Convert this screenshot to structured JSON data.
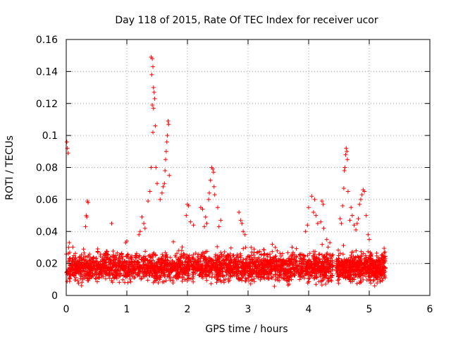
{
  "chart_data": {
    "type": "scatter",
    "title": "Day 118 of 2015, Rate Of TEC Index for receiver ucor",
    "xlabel": "GPS time / hours",
    "ylabel": "ROTI / TECUs",
    "xlim": [
      0,
      6
    ],
    "ylim": [
      0,
      0.16
    ],
    "xticks": [
      0,
      1,
      2,
      3,
      4,
      5,
      6
    ],
    "yticks": [
      0,
      0.02,
      0.04,
      0.06,
      0.08,
      0.1,
      0.12,
      0.14,
      0.16
    ],
    "xtick_labels": [
      "0",
      "1",
      "2",
      "3",
      "4",
      "5",
      "6"
    ],
    "ytick_labels": [
      "0",
      "0.02",
      "0.04",
      "0.06",
      "0.08",
      "0.1",
      "0.12",
      "0.14",
      "0.16"
    ],
    "grid": true,
    "marker": "plus",
    "series": [
      {
        "name": "ROTI",
        "color": "#ff0000",
        "baseline": {
          "x_range": [
            0.0,
            4.4
          ],
          "x_range_2": [
            4.45,
            5.27
          ],
          "y_range": [
            0.005,
            0.03
          ]
        },
        "points": [
          [
            0.01,
            0.096
          ],
          [
            0.02,
            0.092
          ],
          [
            0.03,
            0.089
          ],
          [
            0.05,
            0.033
          ],
          [
            0.04,
            0.03
          ],
          [
            0.35,
            0.059
          ],
          [
            0.36,
            0.058
          ],
          [
            0.33,
            0.05
          ],
          [
            0.34,
            0.049
          ],
          [
            0.32,
            0.043
          ],
          [
            0.75,
            0.045
          ],
          [
            0.98,
            0.033
          ],
          [
            1.0,
            0.034
          ],
          [
            1.4,
            0.149
          ],
          [
            1.42,
            0.148
          ],
          [
            1.43,
            0.143
          ],
          [
            1.41,
            0.138
          ],
          [
            1.44,
            0.13
          ],
          [
            1.45,
            0.127
          ],
          [
            1.46,
            0.123
          ],
          [
            1.42,
            0.119
          ],
          [
            1.44,
            0.117
          ],
          [
            1.47,
            0.106
          ],
          [
            1.43,
            0.102
          ],
          [
            1.4,
            0.08
          ],
          [
            1.48,
            0.08
          ],
          [
            1.5,
            0.07
          ],
          [
            1.38,
            0.065
          ],
          [
            1.35,
            0.059
          ],
          [
            1.68,
            0.109
          ],
          [
            1.69,
            0.107
          ],
          [
            1.67,
            0.1
          ],
          [
            1.66,
            0.096
          ],
          [
            1.65,
            0.09
          ],
          [
            1.64,
            0.085
          ],
          [
            1.63,
            0.078
          ],
          [
            1.7,
            0.075
          ],
          [
            1.62,
            0.07
          ],
          [
            1.6,
            0.068
          ],
          [
            1.58,
            0.064
          ],
          [
            1.55,
            0.06
          ],
          [
            1.25,
            0.049
          ],
          [
            1.28,
            0.045
          ],
          [
            1.3,
            0.042
          ],
          [
            1.22,
            0.04
          ],
          [
            1.2,
            0.038
          ],
          [
            2.0,
            0.057
          ],
          [
            2.02,
            0.056
          ],
          [
            1.98,
            0.05
          ],
          [
            2.05,
            0.046
          ],
          [
            2.1,
            0.044
          ],
          [
            2.22,
            0.055
          ],
          [
            2.25,
            0.054
          ],
          [
            2.3,
            0.049
          ],
          [
            2.32,
            0.045
          ],
          [
            2.28,
            0.043
          ],
          [
            2.4,
            0.08
          ],
          [
            2.42,
            0.079
          ],
          [
            2.43,
            0.077
          ],
          [
            2.38,
            0.072
          ],
          [
            2.44,
            0.068
          ],
          [
            2.36,
            0.064
          ],
          [
            2.45,
            0.063
          ],
          [
            2.35,
            0.06
          ],
          [
            2.5,
            0.055
          ],
          [
            2.55,
            0.047
          ],
          [
            2.52,
            0.043
          ],
          [
            2.85,
            0.052
          ],
          [
            2.88,
            0.047
          ],
          [
            2.9,
            0.045
          ],
          [
            2.92,
            0.04
          ],
          [
            2.95,
            0.038
          ],
          [
            3.05,
            0.03
          ],
          [
            3.1,
            0.029
          ],
          [
            3.4,
            0.032
          ],
          [
            3.45,
            0.03
          ],
          [
            4.05,
            0.062
          ],
          [
            4.1,
            0.06
          ],
          [
            4.0,
            0.055
          ],
          [
            4.08,
            0.052
          ],
          [
            4.12,
            0.05
          ],
          [
            4.2,
            0.046
          ],
          [
            4.15,
            0.045
          ],
          [
            3.98,
            0.044
          ],
          [
            3.95,
            0.04
          ],
          [
            4.25,
            0.042
          ],
          [
            4.22,
            0.059
          ],
          [
            4.24,
            0.057
          ],
          [
            4.3,
            0.035
          ],
          [
            4.35,
            0.033
          ],
          [
            4.62,
            0.092
          ],
          [
            4.63,
            0.09
          ],
          [
            4.61,
            0.088
          ],
          [
            4.64,
            0.085
          ],
          [
            4.6,
            0.08
          ],
          [
            4.59,
            0.078
          ],
          [
            4.58,
            0.067
          ],
          [
            4.65,
            0.065
          ],
          [
            4.56,
            0.056
          ],
          [
            4.52,
            0.048
          ],
          [
            4.54,
            0.045
          ],
          [
            4.7,
            0.055
          ],
          [
            4.72,
            0.05
          ],
          [
            4.68,
            0.047
          ],
          [
            4.75,
            0.044
          ],
          [
            4.78,
            0.041
          ],
          [
            4.9,
            0.066
          ],
          [
            4.92,
            0.065
          ],
          [
            4.88,
            0.063
          ],
          [
            4.86,
            0.06
          ],
          [
            4.84,
            0.057
          ],
          [
            4.95,
            0.05
          ],
          [
            4.82,
            0.048
          ],
          [
            4.8,
            0.045
          ],
          [
            4.98,
            0.038
          ],
          [
            5.0,
            0.035
          ],
          [
            5.25,
            0.024
          ],
          [
            5.26,
            0.022
          ],
          [
            5.24,
            0.02
          ]
        ]
      }
    ]
  }
}
